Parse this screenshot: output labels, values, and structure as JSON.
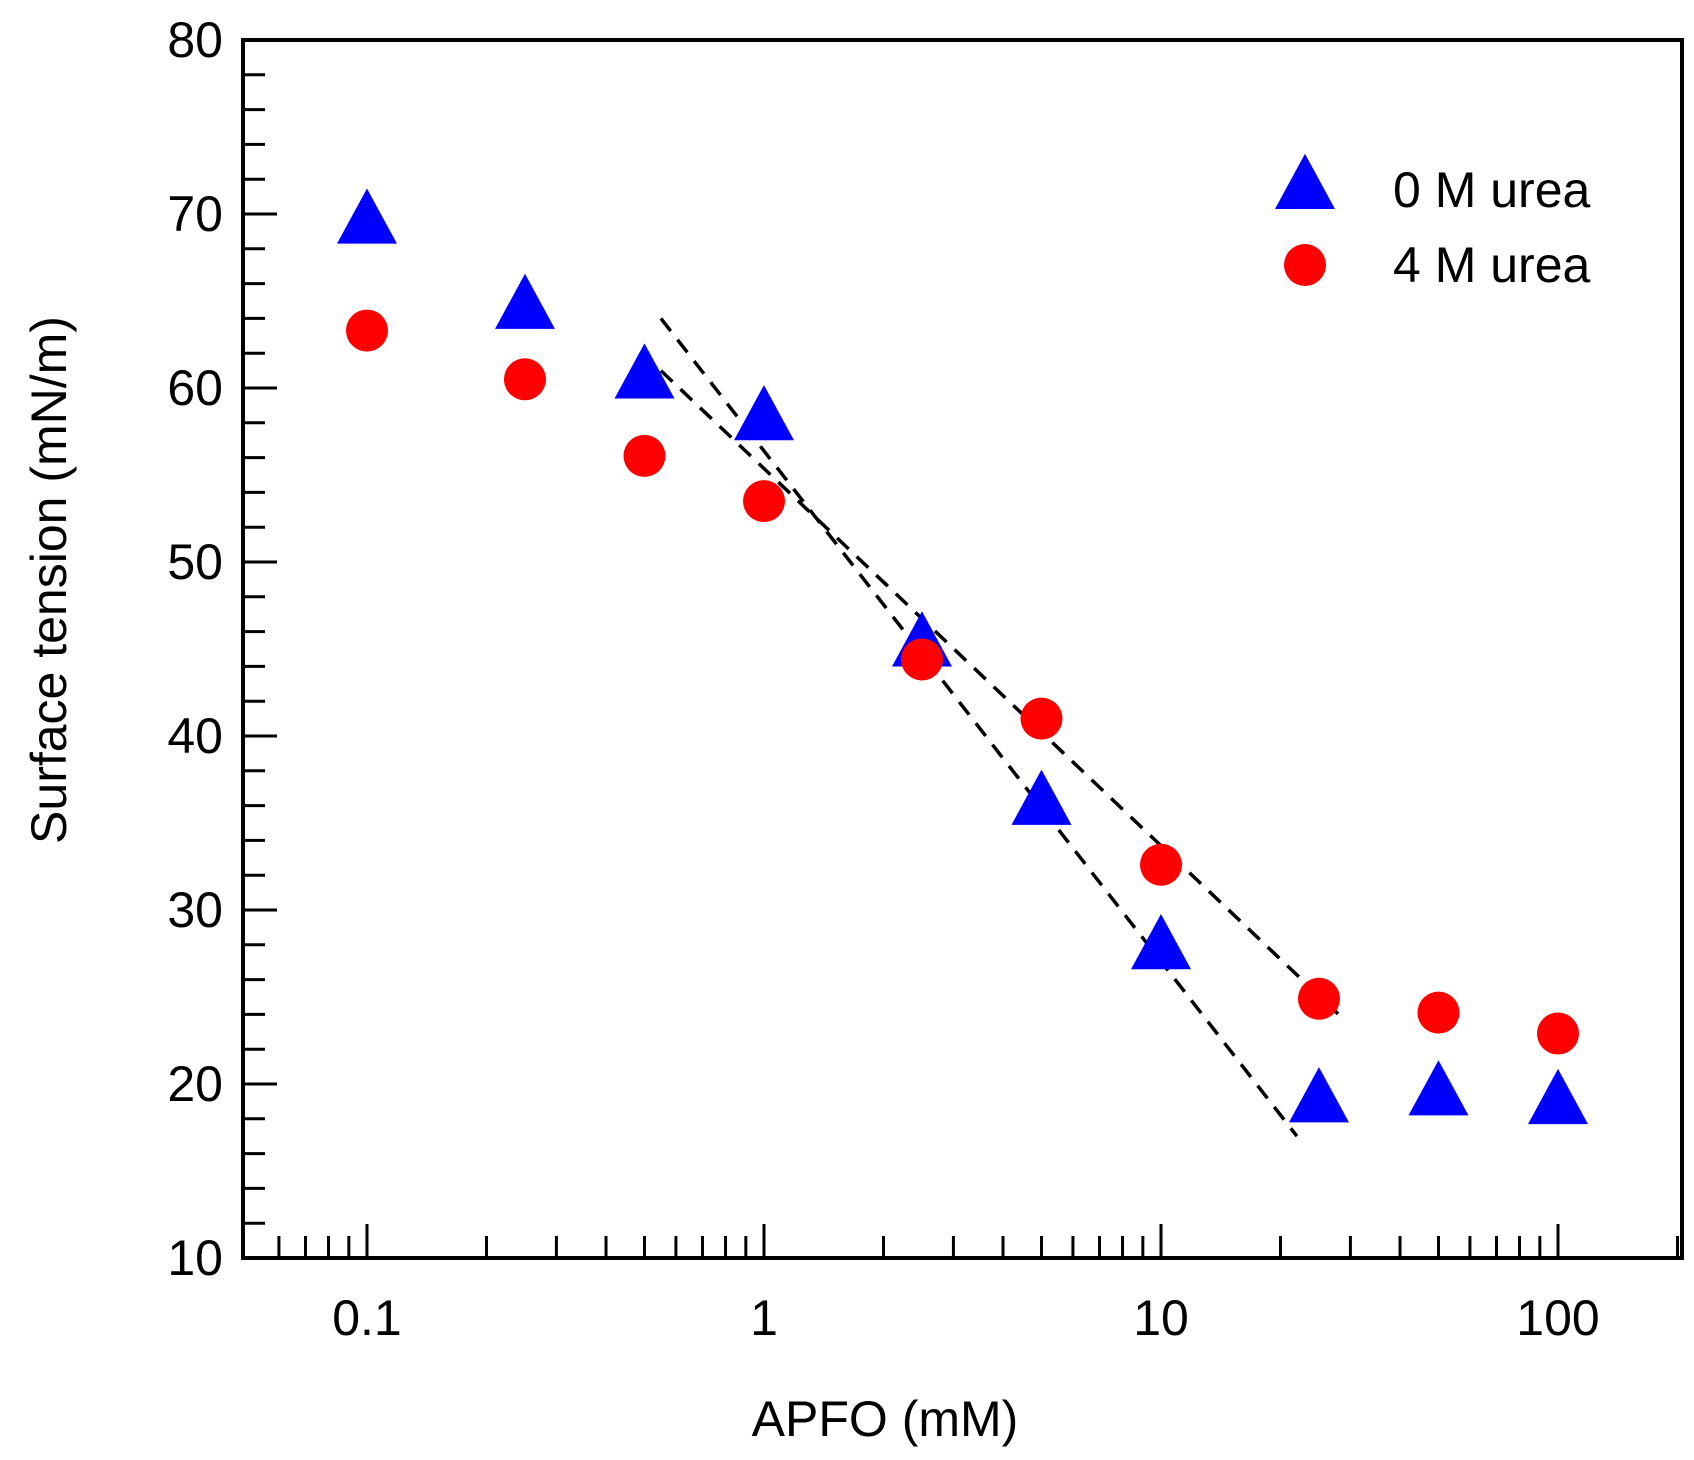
{
  "chart_data": {
    "type": "scatter",
    "xlabel": "APFO (mM)",
    "ylabel": "Surface tension (mN/m)",
    "xscale": "log",
    "xlim": [
      0.06,
      300
    ],
    "ylim": [
      10,
      80
    ],
    "xticks": [
      0.1,
      1,
      10,
      100
    ],
    "xtick_labels": [
      "0.1",
      "1",
      "10",
      "100"
    ],
    "yticks": [
      10,
      20,
      30,
      40,
      50,
      60,
      70,
      80
    ],
    "ytick_labels": [
      "10",
      "20",
      "30",
      "40",
      "50",
      "60",
      "70",
      "80"
    ],
    "legend_position": "top-right",
    "series": [
      {
        "name": "0 M urea",
        "marker": "triangle",
        "color": "#0000ff",
        "x": [
          0.1,
          0.25,
          0.5,
          1,
          2.5,
          5,
          10,
          25,
          50,
          100
        ],
        "y": [
          69.5,
          64.6,
          60.6,
          58.2,
          45.2,
          36.1,
          27.8,
          19.0,
          19.4,
          18.9
        ]
      },
      {
        "name": "4 M urea",
        "marker": "circle",
        "color": "#ff0000",
        "x": [
          0.1,
          0.25,
          0.5,
          1,
          2.5,
          5,
          10,
          25,
          50,
          100
        ],
        "y": [
          63.3,
          60.5,
          56.1,
          53.5,
          44.4,
          41.0,
          32.6,
          24.9,
          24.1,
          22.9
        ]
      }
    ],
    "fit_lines": [
      {
        "style": "dashed",
        "x": [
          0.55,
          22
        ],
        "y": [
          64,
          17
        ]
      },
      {
        "style": "dashed",
        "x": [
          0.55,
          28
        ],
        "y": [
          61,
          24
        ]
      }
    ]
  }
}
